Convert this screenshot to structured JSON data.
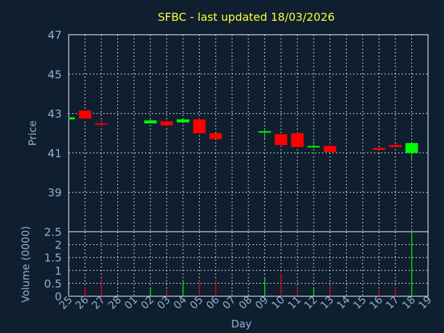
{
  "chart_data": [
    {
      "type": "candlestick",
      "title": "SFBC - last updated 18/03/2026",
      "ylabel": "Price",
      "ylim": [
        37,
        47
      ],
      "yticks": [
        "47",
        "45",
        "43",
        "41",
        "39"
      ],
      "grid": true,
      "up_color": "#00ff00",
      "down_color": "#ff0000",
      "x": [
        "25",
        "26",
        "27",
        "28",
        "01",
        "02",
        "03",
        "04",
        "05",
        "06",
        "07",
        "08",
        "09",
        "10",
        "11",
        "12",
        "13",
        "14",
        "15",
        "16",
        "17",
        "18"
      ],
      "candles": [
        {
          "x": "25",
          "open": 42.7,
          "close": 42.8,
          "high": 42.8,
          "low": 42.7
        },
        {
          "x": "26",
          "open": 43.15,
          "close": 42.75,
          "high": 43.15,
          "low": 42.7
        },
        {
          "x": "27",
          "open": 42.5,
          "close": 42.45,
          "high": 42.7,
          "low": 42.35
        },
        {
          "x": "02",
          "open": 42.5,
          "close": 42.65,
          "high": 42.7,
          "low": 42.5
        },
        {
          "x": "03",
          "open": 42.6,
          "close": 42.4,
          "high": 42.65,
          "low": 42.35
        },
        {
          "x": "04",
          "open": 42.55,
          "close": 42.7,
          "high": 42.75,
          "low": 42.5
        },
        {
          "x": "05",
          "open": 42.7,
          "close": 42.0,
          "high": 42.8,
          "low": 41.95
        },
        {
          "x": "06",
          "open": 42.0,
          "close": 41.7,
          "high": 42.0,
          "low": 41.7
        },
        {
          "x": "09",
          "open": 42.05,
          "close": 42.1,
          "high": 42.15,
          "low": 41.7
        },
        {
          "x": "10",
          "open": 41.95,
          "close": 41.4,
          "high": 41.95,
          "low": 41.35
        },
        {
          "x": "11",
          "open": 42.0,
          "close": 41.3,
          "high": 42.05,
          "low": 41.3
        },
        {
          "x": "12",
          "open": 41.3,
          "close": 41.35,
          "high": 41.6,
          "low": 41.25
        },
        {
          "x": "13",
          "open": 41.35,
          "close": 41.05,
          "high": 41.5,
          "low": 41.0
        },
        {
          "x": "16",
          "open": 41.25,
          "close": 41.15,
          "high": 41.25,
          "low": 41.15
        },
        {
          "x": "17",
          "open": 41.4,
          "close": 41.3,
          "high": 41.45,
          "low": 41.25
        },
        {
          "x": "18",
          "open": 41.0,
          "close": 41.5,
          "high": 41.5,
          "low": 40.6
        }
      ]
    },
    {
      "type": "bar",
      "ylabel": "Volume (0000)",
      "xlabel": "Day",
      "ylim": [
        0,
        2.5
      ],
      "yticks": [
        "2.5",
        "2",
        "1.5",
        "1",
        "0.5",
        "0"
      ],
      "grid": true,
      "categories": [
        "25",
        "26",
        "27",
        "28",
        "01",
        "02",
        "03",
        "04",
        "05",
        "06",
        "07",
        "08",
        "09",
        "10",
        "11",
        "12",
        "13",
        "14",
        "15",
        "16",
        "17",
        "18",
        "19"
      ],
      "bars": [
        {
          "x": "25",
          "value": 0.05,
          "dir": "up"
        },
        {
          "x": "26",
          "value": 0.35,
          "dir": "down"
        },
        {
          "x": "27",
          "value": 0.65,
          "dir": "down"
        },
        {
          "x": "02",
          "value": 0.35,
          "dir": "up"
        },
        {
          "x": "03",
          "value": 0.25,
          "dir": "down"
        },
        {
          "x": "04",
          "value": 0.55,
          "dir": "up"
        },
        {
          "x": "05",
          "value": 0.6,
          "dir": "down"
        },
        {
          "x": "06",
          "value": 0.65,
          "dir": "down"
        },
        {
          "x": "09",
          "value": 0.75,
          "dir": "up"
        },
        {
          "x": "10",
          "value": 0.9,
          "dir": "down"
        },
        {
          "x": "11",
          "value": 0.4,
          "dir": "down"
        },
        {
          "x": "12",
          "value": 0.35,
          "dir": "up"
        },
        {
          "x": "13",
          "value": 0.45,
          "dir": "down"
        },
        {
          "x": "16",
          "value": 0.25,
          "dir": "down"
        },
        {
          "x": "17",
          "value": 0.35,
          "dir": "down"
        },
        {
          "x": "18",
          "value": 2.5,
          "dir": "up"
        }
      ]
    }
  ]
}
